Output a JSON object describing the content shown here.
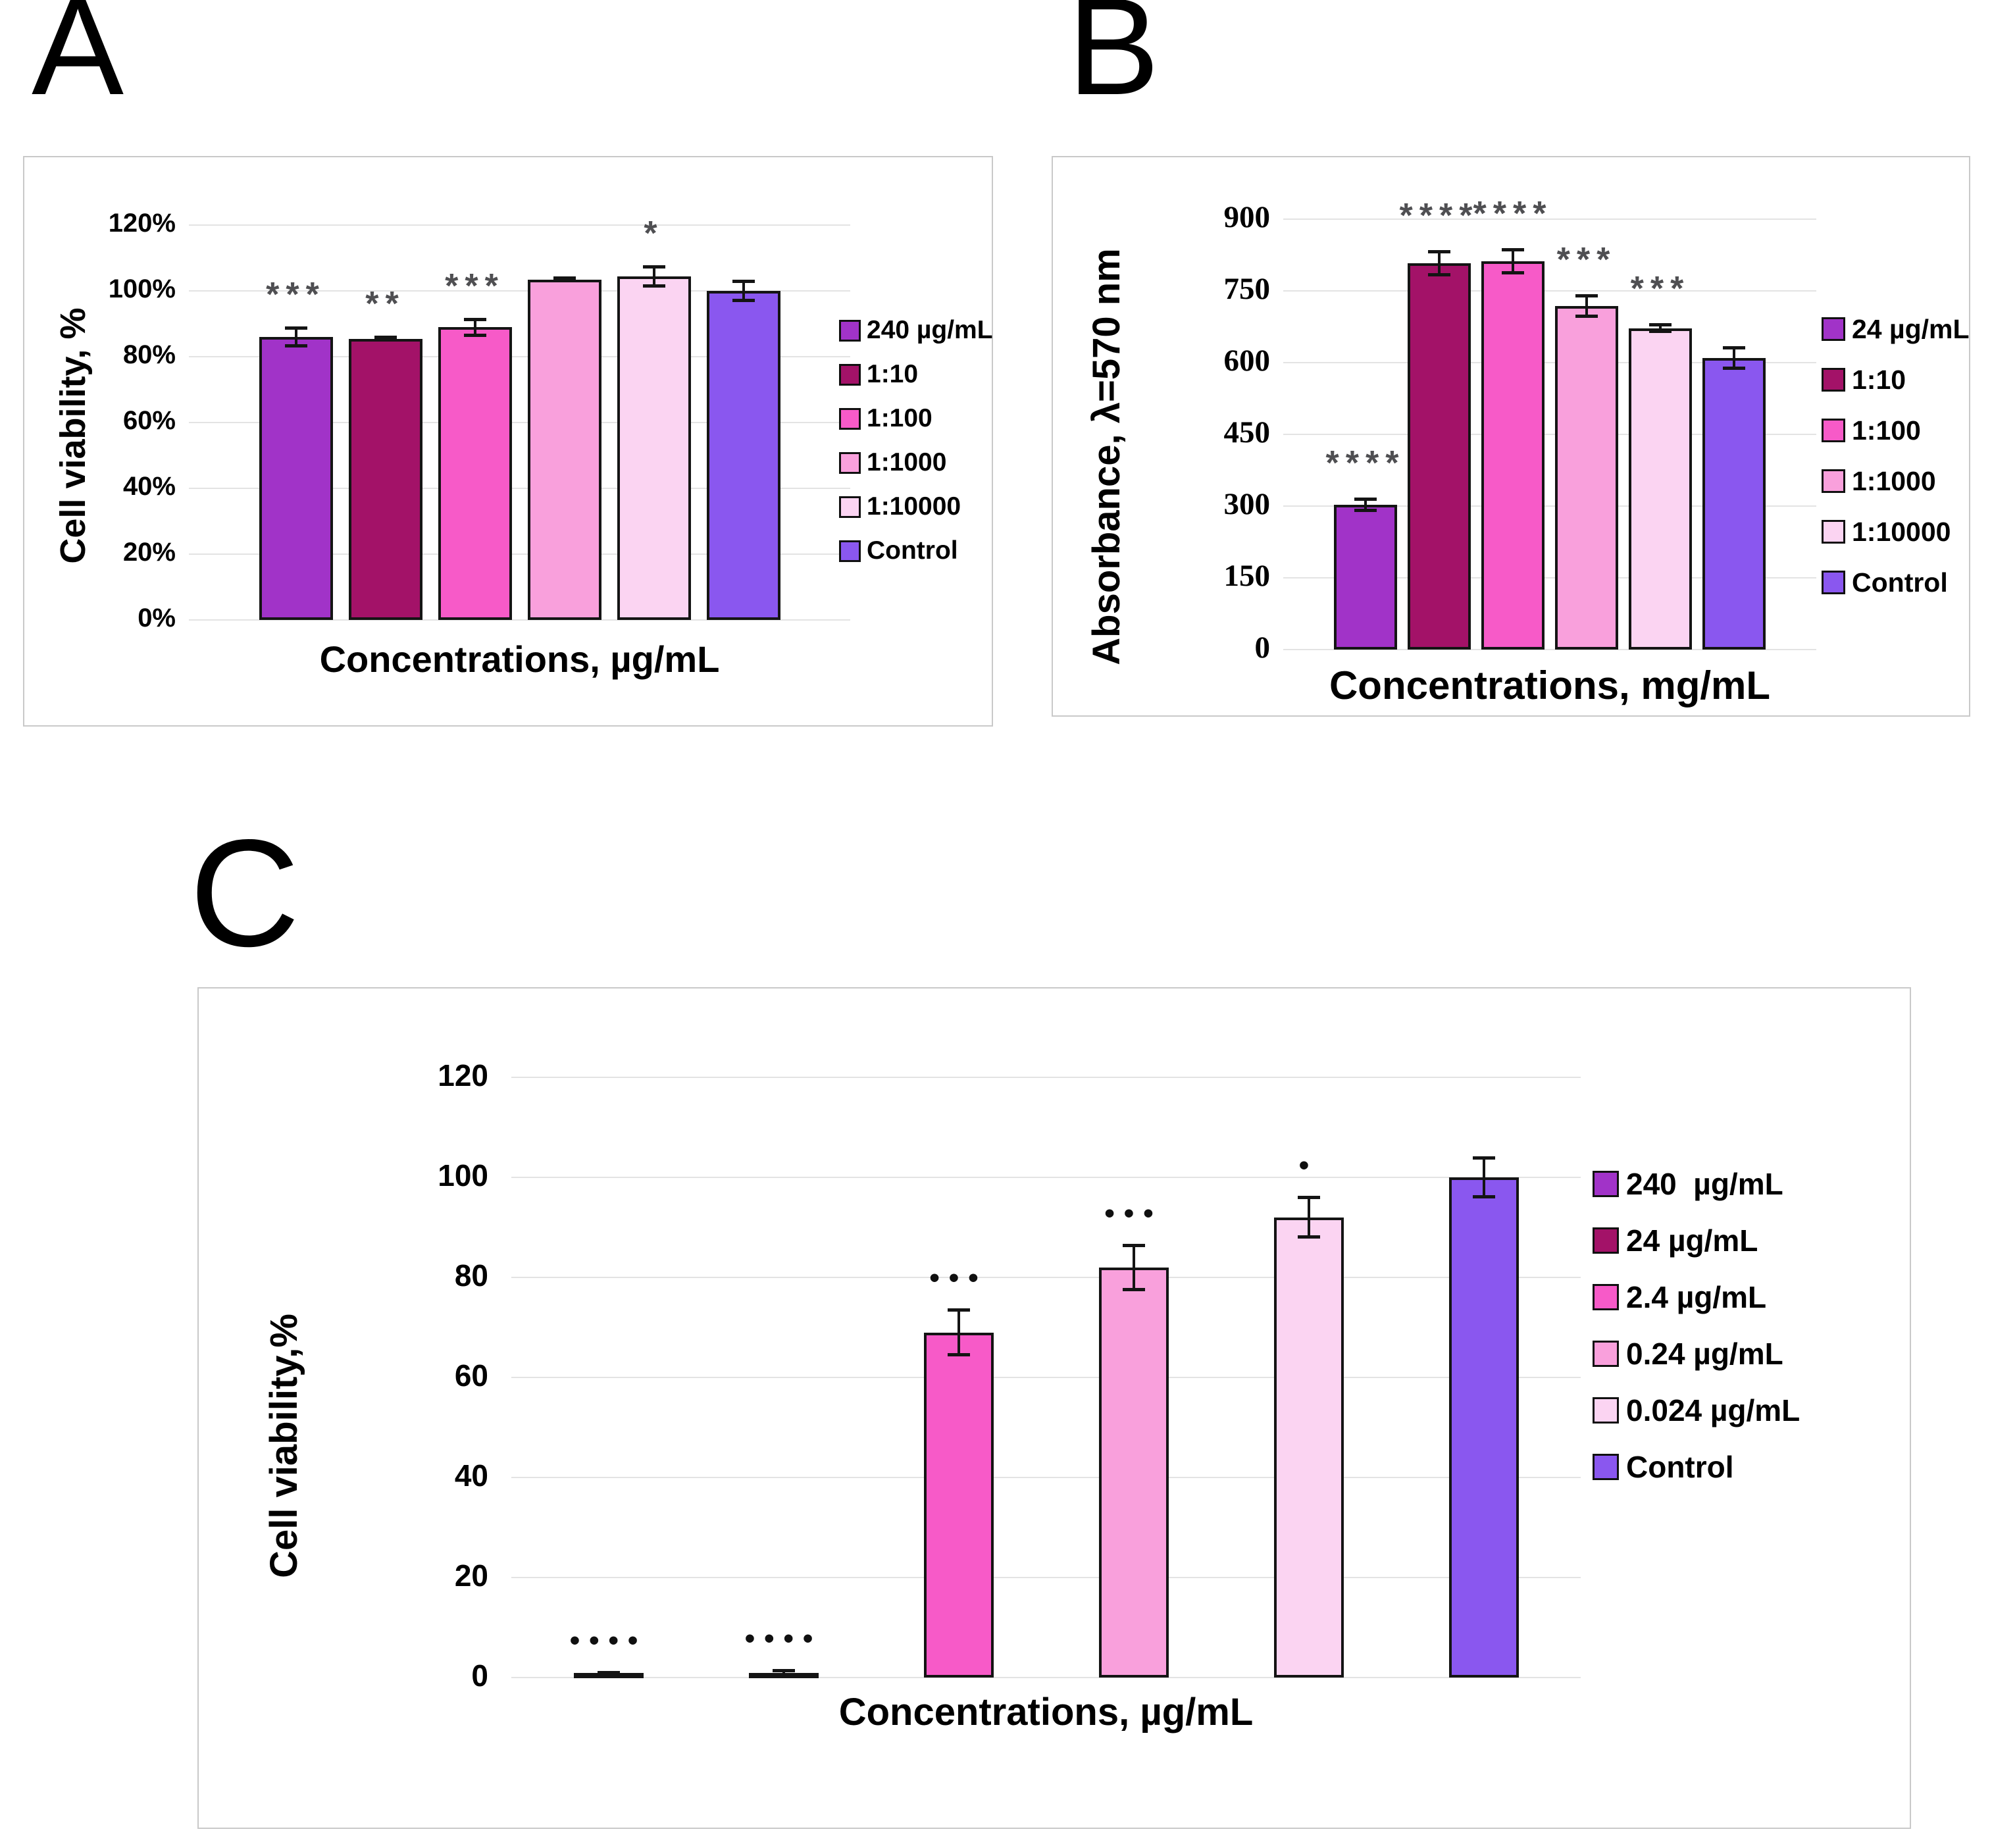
{
  "chart_data": [
    {
      "panel": "A",
      "type": "bar",
      "title": "",
      "ylabel": "Cell viability, %",
      "xlabel": "Concentrations, µg/mL",
      "categories": [
        "240 µg/mL",
        "1:10",
        "1:100",
        "1:1000",
        "1:10000",
        "Control"
      ],
      "legend": [
        "240 µg/mL",
        "1:10",
        "1:100",
        "1:1000",
        "1:10000",
        "Control"
      ],
      "values": [
        86,
        85.5,
        89,
        103.5,
        104.5,
        100
      ],
      "errors": [
        2.8,
        0.5,
        2.5,
        0.5,
        3,
        3
      ],
      "significance": [
        "***",
        "**",
        "***",
        "",
        "*",
        ""
      ],
      "colors": [
        "#A133C8",
        "#A31268",
        "#F75AC8",
        "#F9A0DC",
        "#FBD4F2",
        "#8A57EF"
      ],
      "ytick_labels": [
        "0%",
        "20%",
        "40%",
        "60%",
        "80%",
        "100%",
        "120%"
      ],
      "ytick_values": [
        0,
        20,
        40,
        60,
        80,
        100,
        120
      ],
      "ylim": [
        0,
        130
      ],
      "grid": true,
      "legend_position": "right"
    },
    {
      "panel": "B",
      "type": "bar",
      "title": "",
      "ylabel": "Absorbance, λ=570 nm",
      "xlabel": "Concentrations, mg/mL",
      "categories": [
        "24 µg/mL",
        "1:10",
        "1:100",
        "1:1000",
        "1:10000",
        "Control"
      ],
      "legend": [
        "24 µg/mL",
        "1:10",
        "1:100",
        "1:1000",
        "1:10000",
        "Control"
      ],
      "values": [
        303,
        808,
        812,
        718,
        672,
        610
      ],
      "errors": [
        12,
        25,
        25,
        22,
        8,
        22
      ],
      "significance": [
        "****",
        "****",
        "****",
        "***",
        "***",
        ""
      ],
      "colors": [
        "#A133C8",
        "#A31268",
        "#F75AC8",
        "#F9A0DC",
        "#FBD4F2",
        "#8A57EF"
      ],
      "ytick_labels": [
        "0",
        "150",
        "300",
        "450",
        "600",
        "750",
        "900"
      ],
      "ytick_values": [
        0,
        150,
        300,
        450,
        600,
        750,
        900
      ],
      "ylim": [
        0,
        940
      ],
      "grid": true,
      "legend_position": "right"
    },
    {
      "panel": "C",
      "type": "bar",
      "title": "",
      "ylabel": "Cell viability,%",
      "xlabel": "Concentrations, µg/mL",
      "categories": [
        "240  µg/mL",
        "24 µg/mL",
        "2.4 µg/mL",
        "0.24 µg/mL",
        "0.024 µg/mL",
        "Control"
      ],
      "legend": [
        "240  µg/mL",
        "24 µg/mL",
        "2.4 µg/mL",
        "0.24 µg/mL",
        "0.024 µg/mL",
        "Control"
      ],
      "values": [
        0.6,
        0.9,
        69,
        82,
        92,
        100
      ],
      "errors": [
        0.4,
        0.5,
        4.5,
        4.5,
        4,
        4
      ],
      "significance": [
        "••••",
        "••••",
        "•••",
        "•••",
        "•",
        ""
      ],
      "colors": [
        "#A133C8",
        "#A31268",
        "#F75AC8",
        "#F9A0DC",
        "#FBD4F2",
        "#8A57EF"
      ],
      "ytick_labels": [
        "0",
        "20",
        "40",
        "60",
        "80",
        "100",
        "120"
      ],
      "ytick_values": [
        0,
        20,
        40,
        60,
        80,
        100,
        120
      ],
      "ylim": [
        0,
        130
      ],
      "grid": true,
      "legend_position": "right"
    }
  ]
}
